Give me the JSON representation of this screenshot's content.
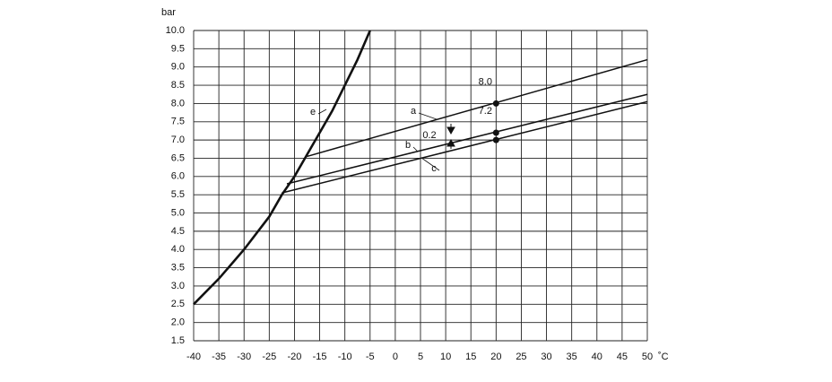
{
  "chart_data": {
    "type": "line",
    "y_label": "bar",
    "x_label": "˚C",
    "xlim": [
      -40,
      50
    ],
    "ylim": [
      1.5,
      10
    ],
    "xticks": [
      -40,
      -35,
      -30,
      -25,
      -20,
      -15,
      -10,
      -5,
      0,
      5,
      10,
      15,
      20,
      25,
      30,
      35,
      40,
      45,
      50
    ],
    "yticks": [
      {
        "value": 10,
        "label": "10.0"
      },
      9.5,
      {
        "value": 9,
        "label": "9.0"
      },
      8.5,
      {
        "value": 8,
        "label": "8.0"
      },
      7.5,
      {
        "value": 7,
        "label": "7.0"
      },
      6.5,
      {
        "value": 6,
        "label": "6.0"
      },
      5.5,
      {
        "value": 5,
        "label": "5.0"
      },
      4.5,
      {
        "value": 4,
        "label": "4.0"
      },
      3.5,
      {
        "value": 3,
        "label": "3.0"
      },
      2.5,
      {
        "value": 2,
        "label": "2.0"
      },
      1.5
    ],
    "grid": true,
    "series": [
      {
        "name": "e",
        "color": "#111",
        "x": [
          -40,
          -35,
          -30,
          -25,
          -22.5,
          -20,
          -17.5,
          -15,
          -12.5,
          -10,
          -7.5,
          -5
        ],
        "values": [
          2.5,
          3.2,
          4.0,
          4.9,
          5.5,
          6.0,
          6.6,
          7.2,
          7.8,
          8.5,
          9.2,
          10.0
        ]
      },
      {
        "name": "a",
        "color": "#111",
        "x": [
          -17.5,
          50
        ],
        "values": [
          6.55,
          9.2
        ]
      },
      {
        "name": "b",
        "color": "#111",
        "x": [
          -21.5,
          50
        ],
        "values": [
          5.8,
          8.25
        ]
      },
      {
        "name": "c",
        "color": "#111",
        "x": [
          -22.5,
          50
        ],
        "values": [
          5.55,
          8.05
        ]
      }
    ],
    "points": {
      "x": [
        20,
        20,
        20
      ],
      "values": [
        8.0,
        7.2,
        7.0
      ],
      "value_labels": [
        "8.0",
        "7.2",
        null
      ]
    },
    "annotation": "0.2"
  }
}
